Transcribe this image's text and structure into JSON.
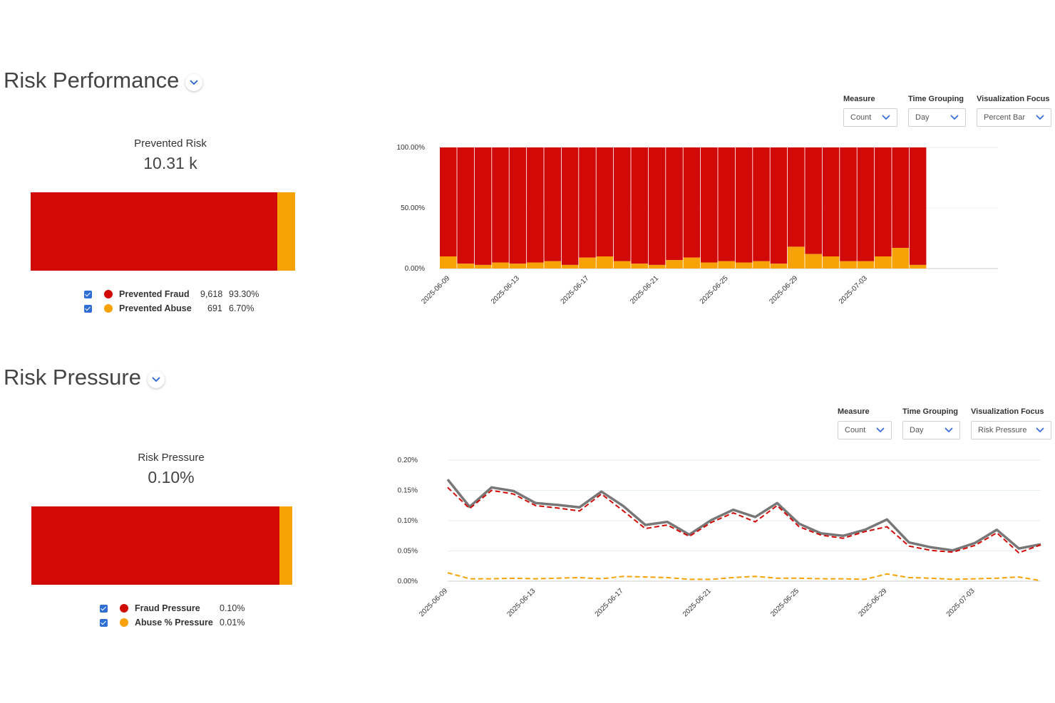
{
  "colors": {
    "fraud": "#d10a08",
    "abuse": "#f7a206",
    "total": "#777777",
    "checkbox": "#2f6fd3",
    "chevron": "#3a6fd8"
  },
  "performance": {
    "title": "Risk Performance",
    "kpi": {
      "label": "Prevented Risk",
      "value": "10.31 k"
    },
    "stack_fraction": {
      "fraud": 0.933,
      "abuse": 0.067
    },
    "legend": [
      {
        "name": "Prevented Fraud",
        "count": "9,618",
        "pct": "93.30%",
        "color": "fraud",
        "checked": true
      },
      {
        "name": "Prevented Abuse",
        "count": "691",
        "pct": "6.70%",
        "color": "abuse",
        "checked": true
      }
    ],
    "controls": {
      "measure": {
        "label": "Measure",
        "value": "Count"
      },
      "time_grouping": {
        "label": "Time Grouping",
        "value": "Day"
      },
      "viz_focus": {
        "label": "Visualization Focus",
        "value": "Percent Bar"
      }
    }
  },
  "pressure": {
    "title": "Risk Pressure",
    "kpi": {
      "label": "Risk Pressure",
      "value": "0.10%"
    },
    "stack_fraction": {
      "fraud": 0.95,
      "abuse": 0.05
    },
    "legend": [
      {
        "name": "Fraud Pressure",
        "pct": "0.10%",
        "color": "fraud",
        "checked": true
      },
      {
        "name": "Abuse % Pressure",
        "pct": "0.01%",
        "color": "abuse",
        "checked": true
      }
    ],
    "controls": {
      "measure": {
        "label": "Measure",
        "value": "Count"
      },
      "time_grouping": {
        "label": "Time Grouping",
        "value": "Day"
      },
      "viz_focus": {
        "label": "Visualization Focus",
        "value": "Risk Pressure"
      }
    }
  },
  "chart_data": [
    {
      "type": "bar",
      "stacked": "percent",
      "dates": [
        "2025-06-09",
        "2025-06-10",
        "2025-06-11",
        "2025-06-12",
        "2025-06-13",
        "2025-06-14",
        "2025-06-15",
        "2025-06-16",
        "2025-06-17",
        "2025-06-18",
        "2025-06-19",
        "2025-06-20",
        "2025-06-21",
        "2025-06-22",
        "2025-06-23",
        "2025-06-24",
        "2025-06-25",
        "2025-06-26",
        "2025-06-27",
        "2025-06-28",
        "2025-06-29",
        "2025-06-30",
        "2025-07-01",
        "2025-07-02",
        "2025-07-03",
        "2025-07-04",
        "2025-07-05",
        "2025-07-06"
      ],
      "x_tick_labels": [
        "2025-06-09",
        "2025-06-13",
        "2025-06-17",
        "2025-06-21",
        "2025-06-25",
        "2025-06-29",
        "2025-07-03"
      ],
      "y_tick_labels": [
        "100.00%",
        "50.00%",
        "0.00%"
      ],
      "ylim": [
        0,
        100
      ],
      "grid": true,
      "series": [
        {
          "color": "fraud",
          "values": [
            90,
            96,
            97,
            95,
            96,
            95,
            94,
            97,
            91,
            90,
            94,
            96,
            97,
            93,
            91,
            95,
            94,
            95,
            94,
            96,
            82,
            88,
            90,
            94,
            94,
            90,
            83,
            97
          ]
        },
        {
          "color": "abuse",
          "values": [
            10,
            4,
            3,
            5,
            4,
            5,
            6,
            3,
            9,
            10,
            6,
            4,
            3,
            7,
            9,
            5,
            6,
            5,
            6,
            4,
            18,
            12,
            10,
            6,
            6,
            10,
            17,
            3
          ]
        }
      ]
    },
    {
      "type": "line",
      "dates": [
        "2025-06-09",
        "2025-06-10",
        "2025-06-11",
        "2025-06-12",
        "2025-06-13",
        "2025-06-14",
        "2025-06-15",
        "2025-06-16",
        "2025-06-17",
        "2025-06-18",
        "2025-06-19",
        "2025-06-20",
        "2025-06-21",
        "2025-06-22",
        "2025-06-23",
        "2025-06-24",
        "2025-06-25",
        "2025-06-26",
        "2025-06-27",
        "2025-06-28",
        "2025-06-29",
        "2025-06-30",
        "2025-07-01",
        "2025-07-02",
        "2025-07-03",
        "2025-07-04",
        "2025-07-05",
        "2025-07-06"
      ],
      "x_tick_labels": [
        "2025-06-09",
        "2025-06-13",
        "2025-06-17",
        "2025-06-21",
        "2025-06-25",
        "2025-06-29",
        "2025-07-03"
      ],
      "y_tick_labels": [
        "0.20%",
        "0.15%",
        "0.10%",
        "0.05%",
        "0.00%"
      ],
      "ylim": [
        0,
        0.2
      ],
      "grid": true,
      "series": [
        {
          "color": "total",
          "style": "solid",
          "values": [
            0.168,
            0.123,
            0.155,
            0.149,
            0.129,
            0.126,
            0.122,
            0.148,
            0.124,
            0.093,
            0.098,
            0.077,
            0.101,
            0.118,
            0.106,
            0.129,
            0.095,
            0.079,
            0.075,
            0.085,
            0.102,
            0.064,
            0.056,
            0.051,
            0.063,
            0.085,
            0.054,
            0.061
          ]
        },
        {
          "color": "fraud",
          "style": "dashed",
          "values": [
            0.155,
            0.12,
            0.15,
            0.144,
            0.125,
            0.121,
            0.116,
            0.144,
            0.116,
            0.087,
            0.093,
            0.074,
            0.097,
            0.113,
            0.098,
            0.125,
            0.09,
            0.076,
            0.071,
            0.082,
            0.09,
            0.058,
            0.051,
            0.048,
            0.059,
            0.08,
            0.047,
            0.06
          ]
        },
        {
          "color": "abuse",
          "style": "dashed",
          "values": [
            0.014,
            0.004,
            0.004,
            0.005,
            0.004,
            0.005,
            0.006,
            0.004,
            0.008,
            0.007,
            0.006,
            0.003,
            0.003,
            0.006,
            0.008,
            0.005,
            0.005,
            0.004,
            0.004,
            0.003,
            0.012,
            0.006,
            0.005,
            0.003,
            0.004,
            0.005,
            0.007,
            0.001
          ]
        }
      ]
    }
  ]
}
